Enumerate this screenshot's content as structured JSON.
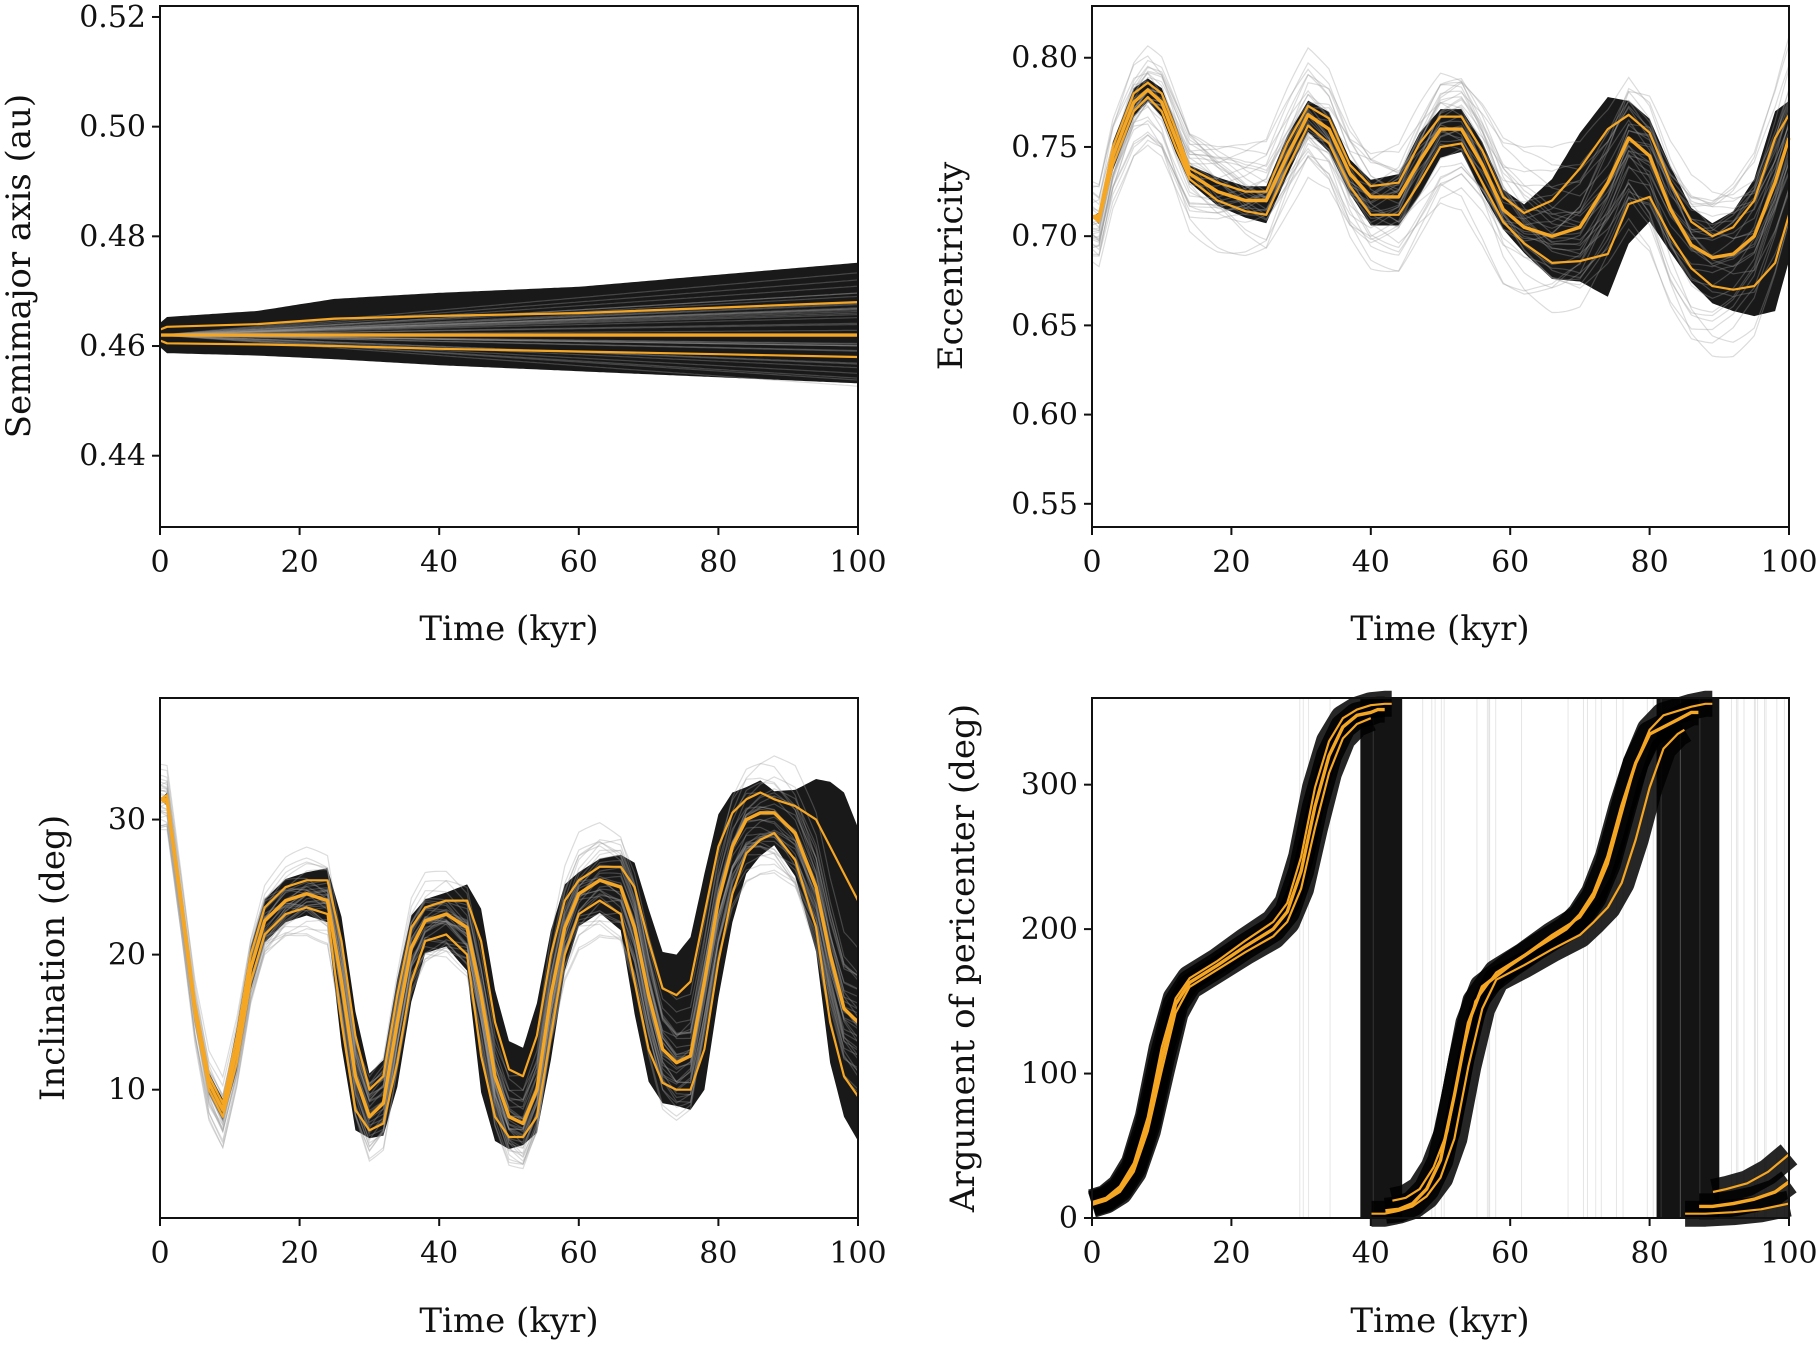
{
  "colors": {
    "ensemble": "#000000",
    "faint_ensemble": "#9a9a9a",
    "median": "#f5a623",
    "axes": "#111111",
    "background": "#ffffff"
  },
  "chart_data": [
    {
      "id": "semimajor",
      "type": "line",
      "xlabel": "Time (kyr)",
      "ylabel": "Semimajor axis (au)",
      "xlim": [
        0,
        100
      ],
      "ylim": [
        0.427,
        0.522
      ],
      "xticks": [
        0,
        20,
        40,
        60,
        80,
        100
      ],
      "yticks": [
        0.44,
        0.46,
        0.48,
        0.5,
        0.52
      ],
      "ytick_labels": [
        "0.44",
        "0.46",
        "0.48",
        "0.50",
        "0.52"
      ],
      "median": {
        "x": [
          0,
          1,
          14,
          25,
          40,
          60,
          80,
          100
        ],
        "y": [
          0.462,
          0.462,
          0.462,
          0.462,
          0.462,
          0.462,
          0.462,
          0.462
        ]
      },
      "upper": {
        "x": [
          0,
          1,
          14,
          25,
          40,
          60,
          80,
          100
        ],
        "y": [
          0.463,
          0.4635,
          0.464,
          0.465,
          0.4655,
          0.466,
          0.467,
          0.468
        ]
      },
      "lower": {
        "x": [
          0,
          1,
          14,
          25,
          40,
          60,
          80,
          100
        ],
        "y": [
          0.461,
          0.4605,
          0.4603,
          0.46,
          0.4595,
          0.459,
          0.4585,
          0.458
        ]
      }
    },
    {
      "id": "eccentricity",
      "type": "line",
      "xlabel": "Time (kyr)",
      "ylabel": "Eccentricity",
      "xlim": [
        0,
        100
      ],
      "ylim": [
        0.537,
        0.829
      ],
      "xticks": [
        0,
        20,
        40,
        60,
        80,
        100
      ],
      "yticks": [
        0.55,
        0.6,
        0.65,
        0.7,
        0.75,
        0.8
      ],
      "ytick_labels": [
        "0.55",
        "0.60",
        "0.65",
        "0.70",
        "0.75",
        "0.80"
      ],
      "median": {
        "x": [
          0,
          1,
          3,
          6,
          8,
          10,
          12,
          14,
          18,
          22,
          25,
          28,
          31,
          34,
          37,
          40,
          44,
          47,
          50,
          53,
          56,
          59,
          62,
          66,
          70,
          74,
          77,
          80,
          83,
          86,
          89,
          92,
          95,
          98,
          100
        ],
        "y": [
          0.711,
          0.71,
          0.745,
          0.775,
          0.782,
          0.775,
          0.755,
          0.735,
          0.725,
          0.72,
          0.72,
          0.745,
          0.768,
          0.76,
          0.735,
          0.722,
          0.722,
          0.742,
          0.76,
          0.76,
          0.74,
          0.715,
          0.705,
          0.7,
          0.705,
          0.73,
          0.755,
          0.745,
          0.715,
          0.695,
          0.688,
          0.69,
          0.7,
          0.73,
          0.755
        ]
      },
      "upper": {
        "x": [
          0,
          1,
          3,
          6,
          8,
          10,
          12,
          14,
          18,
          22,
          25,
          28,
          31,
          34,
          37,
          40,
          44,
          47,
          50,
          53,
          56,
          59,
          62,
          66,
          70,
          74,
          77,
          80,
          83,
          86,
          89,
          92,
          95,
          98,
          100
        ],
        "y": [
          0.711,
          0.712,
          0.75,
          0.78,
          0.786,
          0.78,
          0.76,
          0.738,
          0.73,
          0.725,
          0.725,
          0.752,
          0.773,
          0.766,
          0.74,
          0.728,
          0.73,
          0.752,
          0.767,
          0.767,
          0.748,
          0.722,
          0.713,
          0.72,
          0.738,
          0.76,
          0.768,
          0.758,
          0.73,
          0.708,
          0.7,
          0.705,
          0.72,
          0.755,
          0.768
        ]
      },
      "lower": {
        "x": [
          0,
          1,
          3,
          6,
          8,
          10,
          12,
          14,
          18,
          22,
          25,
          28,
          31,
          34,
          37,
          40,
          44,
          47,
          50,
          53,
          56,
          59,
          62,
          66,
          70,
          74,
          77,
          80,
          83,
          86,
          89,
          92,
          95,
          98,
          100
        ],
        "y": [
          0.711,
          0.708,
          0.74,
          0.77,
          0.778,
          0.77,
          0.75,
          0.732,
          0.72,
          0.714,
          0.712,
          0.738,
          0.762,
          0.752,
          0.728,
          0.712,
          0.712,
          0.73,
          0.75,
          0.752,
          0.73,
          0.708,
          0.696,
          0.685,
          0.686,
          0.69,
          0.718,
          0.722,
          0.7,
          0.682,
          0.672,
          0.67,
          0.672,
          0.685,
          0.712
        ]
      }
    },
    {
      "id": "inclination",
      "type": "line",
      "xlabel": "Time (kyr)",
      "ylabel": "Inclination (deg)",
      "xlim": [
        0,
        100
      ],
      "ylim": [
        0.5,
        39
      ],
      "xticks": [
        0,
        20,
        40,
        60,
        80,
        100
      ],
      "yticks": [
        10,
        20,
        30
      ],
      "ytick_labels": [
        "10",
        "20",
        "30"
      ],
      "median": {
        "x": [
          0,
          1,
          3,
          5,
          7,
          9,
          11,
          13,
          15,
          18,
          21,
          24,
          26,
          28,
          30,
          32,
          34,
          36,
          38,
          41,
          44,
          46,
          48,
          50,
          52,
          54,
          56,
          58,
          60,
          63,
          66,
          68,
          70,
          72,
          74,
          76,
          78,
          80,
          82,
          84,
          86,
          88,
          91,
          94,
          96,
          98,
          100
        ],
        "y": [
          31.5,
          31.5,
          24,
          16,
          10.5,
          8.5,
          13,
          19,
          22.5,
          24,
          24.5,
          24,
          18,
          11,
          8,
          9,
          15,
          20.5,
          22.5,
          23,
          22,
          17,
          11,
          8,
          7.5,
          10,
          17,
          22,
          24.5,
          25.5,
          25,
          22,
          17,
          13,
          12,
          12.5,
          18,
          24,
          28,
          30,
          30.5,
          30.5,
          29,
          25,
          20,
          16,
          15
        ]
      },
      "upper": {
        "x": [
          0,
          1,
          3,
          5,
          7,
          9,
          11,
          13,
          15,
          18,
          21,
          24,
          26,
          28,
          30,
          32,
          34,
          36,
          38,
          41,
          44,
          46,
          48,
          50,
          52,
          54,
          56,
          58,
          60,
          63,
          66,
          68,
          70,
          72,
          74,
          76,
          78,
          80,
          82,
          84,
          86,
          88,
          91,
          94,
          96,
          98,
          100
        ],
        "y": [
          31.5,
          31.8,
          24.5,
          16.5,
          11,
          9,
          14,
          20,
          23.5,
          25,
          25.5,
          25.5,
          21,
          14,
          10,
          11,
          17,
          22,
          23.5,
          24,
          24,
          21,
          15,
          11.5,
          11,
          14,
          20,
          24,
          25.5,
          26.5,
          26.5,
          25,
          21,
          17.5,
          17,
          18,
          23,
          28,
          30.5,
          31.5,
          32,
          31.5,
          31,
          30,
          28,
          26,
          24
        ]
      },
      "lower": {
        "x": [
          0,
          1,
          3,
          5,
          7,
          9,
          11,
          13,
          15,
          18,
          21,
          24,
          26,
          28,
          30,
          32,
          34,
          36,
          38,
          41,
          44,
          46,
          48,
          50,
          52,
          54,
          56,
          58,
          60,
          63,
          66,
          68,
          70,
          72,
          74,
          76,
          78,
          80,
          82,
          84,
          86,
          88,
          91,
          94,
          96,
          98,
          100
        ],
        "y": [
          31.5,
          31.2,
          23.5,
          15.5,
          10,
          8,
          12,
          18,
          21.5,
          23,
          23.5,
          23,
          15,
          8.5,
          7,
          7.5,
          12,
          18,
          21,
          21.5,
          20,
          12.5,
          8,
          6.5,
          6.5,
          8,
          14,
          20,
          23,
          24,
          23,
          18,
          13,
          10.5,
          10,
          10,
          13,
          19.5,
          24.5,
          27.5,
          28.5,
          29,
          27,
          22,
          15,
          11,
          9.5
        ]
      }
    },
    {
      "id": "pericenter",
      "type": "line",
      "xlabel": "Time (kyr)",
      "ylabel": "Argument of pericenter (deg)",
      "xlim": [
        0,
        100
      ],
      "ylim": [
        0,
        360
      ],
      "xticks": [
        0,
        20,
        40,
        60,
        80,
        100
      ],
      "yticks": [
        0,
        100,
        200,
        300
      ],
      "ytick_labels": [
        "0",
        "100",
        "200",
        "300"
      ],
      "median": {
        "x": [
          0,
          2,
          4,
          6,
          8,
          10,
          12,
          14,
          18,
          22,
          26,
          28,
          30,
          32,
          34,
          36,
          38,
          40,
          41,
          42,
          42.1,
          44,
          46,
          48,
          50,
          52,
          54,
          56,
          60,
          64,
          68,
          70,
          72,
          74,
          76,
          78,
          80,
          84,
          86,
          87,
          87.1,
          89,
          92,
          95,
          98,
          100
        ],
        "y": [
          10,
          13,
          20,
          35,
          65,
          110,
          148,
          163,
          175,
          188,
          200,
          212,
          240,
          285,
          320,
          340,
          348,
          350,
          352,
          352,
          5,
          6,
          10,
          20,
          40,
          85,
          135,
          160,
          175,
          188,
          200,
          210,
          225,
          250,
          285,
          315,
          335,
          345,
          350,
          350,
          8,
          8,
          10,
          13,
          18,
          25
        ]
      },
      "upper": {
        "x": [
          0,
          2,
          4,
          6,
          8,
          10,
          12,
          14,
          18,
          22,
          26,
          28,
          30,
          32,
          34,
          36,
          38,
          40,
          42,
          43,
          43.1,
          45,
          47,
          49,
          51,
          53,
          55,
          58,
          62,
          66,
          70,
          72,
          74,
          76,
          78,
          80,
          82,
          86,
          88,
          89,
          89.1,
          91,
          94,
          97,
          100
        ],
        "y": [
          11,
          14,
          22,
          38,
          70,
          118,
          152,
          166,
          178,
          192,
          205,
          218,
          250,
          298,
          330,
          346,
          352,
          355,
          356,
          356,
          12,
          14,
          20,
          35,
          60,
          110,
          150,
          170,
          182,
          196,
          208,
          222,
          245,
          280,
          315,
          338,
          348,
          354,
          356,
          356,
          18,
          20,
          24,
          32,
          44
        ]
      },
      "lower": {
        "x": [
          0,
          2,
          4,
          6,
          8,
          10,
          12,
          14,
          18,
          22,
          26,
          28,
          30,
          32,
          34,
          36,
          38,
          40,
          40.1,
          42,
          44,
          46,
          48,
          50,
          52,
          54,
          56,
          58,
          62,
          66,
          70,
          72,
          74,
          76,
          78,
          80,
          82,
          84,
          85,
          85.1,
          88,
          92,
          96,
          100
        ],
        "y": [
          9,
          12,
          18,
          32,
          60,
          102,
          142,
          160,
          172,
          184,
          195,
          205,
          228,
          270,
          308,
          332,
          342,
          346,
          3,
          3,
          5,
          8,
          15,
          28,
          55,
          105,
          145,
          165,
          175,
          186,
          196,
          205,
          215,
          232,
          262,
          298,
          325,
          335,
          338,
          3,
          3,
          4,
          6,
          10
        ]
      }
    }
  ]
}
